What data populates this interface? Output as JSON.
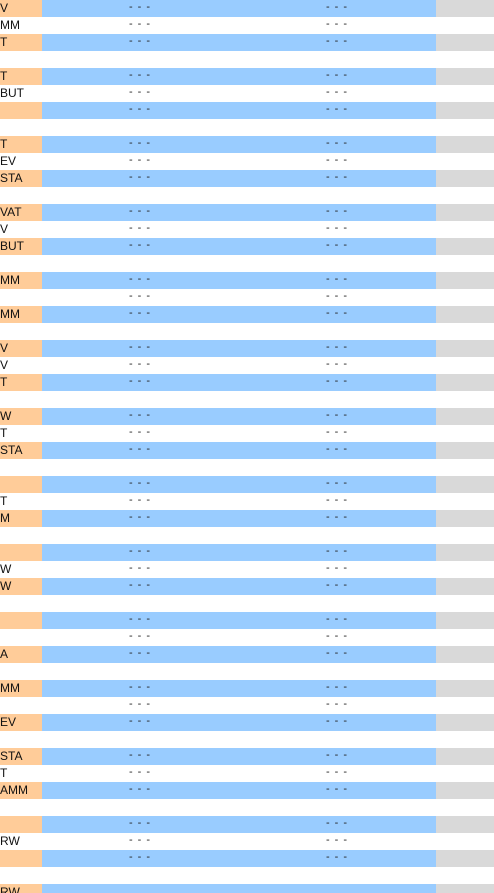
{
  "colors": {
    "label_fill": "#ffcc99",
    "value_fill": "#99ccff",
    "end_fill": "#d9d9d9"
  },
  "rows": [
    {
      "label": "V",
      "a": "- - -",
      "b": "- - -",
      "shaded": true
    },
    {
      "label": "MM",
      "a": "- - -",
      "b": "- - -",
      "shaded": false
    },
    {
      "label": "T",
      "a": "- - -",
      "b": "- - -",
      "shaded": true
    },
    {
      "label": "",
      "a": "",
      "b": "",
      "shaded": false
    },
    {
      "label": "T",
      "a": "- - -",
      "b": "- - -",
      "shaded": true
    },
    {
      "label": "BUT",
      "a": "- - -",
      "b": "- - -",
      "shaded": false
    },
    {
      "label": "",
      "a": "- - -",
      "b": "- - -",
      "shaded": true
    },
    {
      "label": "",
      "a": "",
      "b": "",
      "shaded": false
    },
    {
      "label": "T",
      "a": "- - -",
      "b": "- - -",
      "shaded": true
    },
    {
      "label": "EV",
      "a": "- - -",
      "b": "- - -",
      "shaded": false
    },
    {
      "label": "STA",
      "a": "- - -",
      "b": "- - -",
      "shaded": true
    },
    {
      "label": "",
      "a": "",
      "b": "",
      "shaded": false
    },
    {
      "label": "VAT",
      "a": "- - -",
      "b": "- - -",
      "shaded": true
    },
    {
      "label": "V",
      "a": "- - -",
      "b": "- - -",
      "shaded": false
    },
    {
      "label": "BUT",
      "a": "- - -",
      "b": "- - -",
      "shaded": true
    },
    {
      "label": "",
      "a": "",
      "b": "",
      "shaded": false
    },
    {
      "label": "MM",
      "a": "- - -",
      "b": "- - -",
      "shaded": true
    },
    {
      "label": "",
      "a": "- - -",
      "b": "- - -",
      "shaded": false
    },
    {
      "label": "MM",
      "a": "- - -",
      "b": "- - -",
      "shaded": true
    },
    {
      "label": "",
      "a": "",
      "b": "",
      "shaded": false
    },
    {
      "label": "V",
      "a": "- - -",
      "b": "- - -",
      "shaded": true
    },
    {
      "label": "V",
      "a": "- - -",
      "b": "- - -",
      "shaded": false
    },
    {
      "label": "T",
      "a": "- - -",
      "b": "- - -",
      "shaded": true
    },
    {
      "label": "",
      "a": "",
      "b": "",
      "shaded": false
    },
    {
      "label": "W",
      "a": "- - -",
      "b": "- - -",
      "shaded": true
    },
    {
      "label": "T",
      "a": "- - -",
      "b": "- - -",
      "shaded": false
    },
    {
      "label": "STA",
      "a": "- - -",
      "b": "- - -",
      "shaded": true
    },
    {
      "label": "",
      "a": "",
      "b": "",
      "shaded": false
    },
    {
      "label": "",
      "a": "- - -",
      "b": "- - -",
      "shaded": true
    },
    {
      "label": "T",
      "a": "- - -",
      "b": "- - -",
      "shaded": false
    },
    {
      "label": "M",
      "a": "- - -",
      "b": "- - -",
      "shaded": true
    },
    {
      "label": "",
      "a": "",
      "b": "",
      "shaded": false
    },
    {
      "label": "",
      "a": "- - -",
      "b": "- - -",
      "shaded": true
    },
    {
      "label": "W",
      "a": "- - -",
      "b": "- - -",
      "shaded": false
    },
    {
      "label": "W",
      "a": "- - -",
      "b": "- - -",
      "shaded": true
    },
    {
      "label": "",
      "a": "",
      "b": "",
      "shaded": false
    },
    {
      "label": "",
      "a": "- - -",
      "b": "- - -",
      "shaded": true
    },
    {
      "label": "",
      "a": "- - -",
      "b": "- - -",
      "shaded": false
    },
    {
      "label": "A",
      "a": "- - -",
      "b": "- - -",
      "shaded": true
    },
    {
      "label": "",
      "a": "",
      "b": "",
      "shaded": false
    },
    {
      "label": "MM",
      "a": "- - -",
      "b": "- - -",
      "shaded": true
    },
    {
      "label": "",
      "a": "- - -",
      "b": "- - -",
      "shaded": false
    },
    {
      "label": "EV",
      "a": "- - -",
      "b": "- - -",
      "shaded": true
    },
    {
      "label": "",
      "a": "",
      "b": "",
      "shaded": false
    },
    {
      "label": "STA",
      "a": "- - -",
      "b": "- - -",
      "shaded": true
    },
    {
      "label": "T",
      "a": "- - -",
      "b": "- - -",
      "shaded": false
    },
    {
      "label": "AMM",
      "a": "- - -",
      "b": "- - -",
      "shaded": true
    },
    {
      "label": "",
      "a": "",
      "b": "",
      "shaded": false
    },
    {
      "label": "",
      "a": "- - -",
      "b": "- - -",
      "shaded": true
    },
    {
      "label": "RW",
      "a": "- - -",
      "b": "- - -",
      "shaded": false
    },
    {
      "label": "",
      "a": "- - -",
      "b": "- - -",
      "shaded": true
    },
    {
      "label": "",
      "a": "",
      "b": "",
      "shaded": false
    },
    {
      "label": "RW",
      "a": "",
      "b": "",
      "shaded": true
    }
  ]
}
